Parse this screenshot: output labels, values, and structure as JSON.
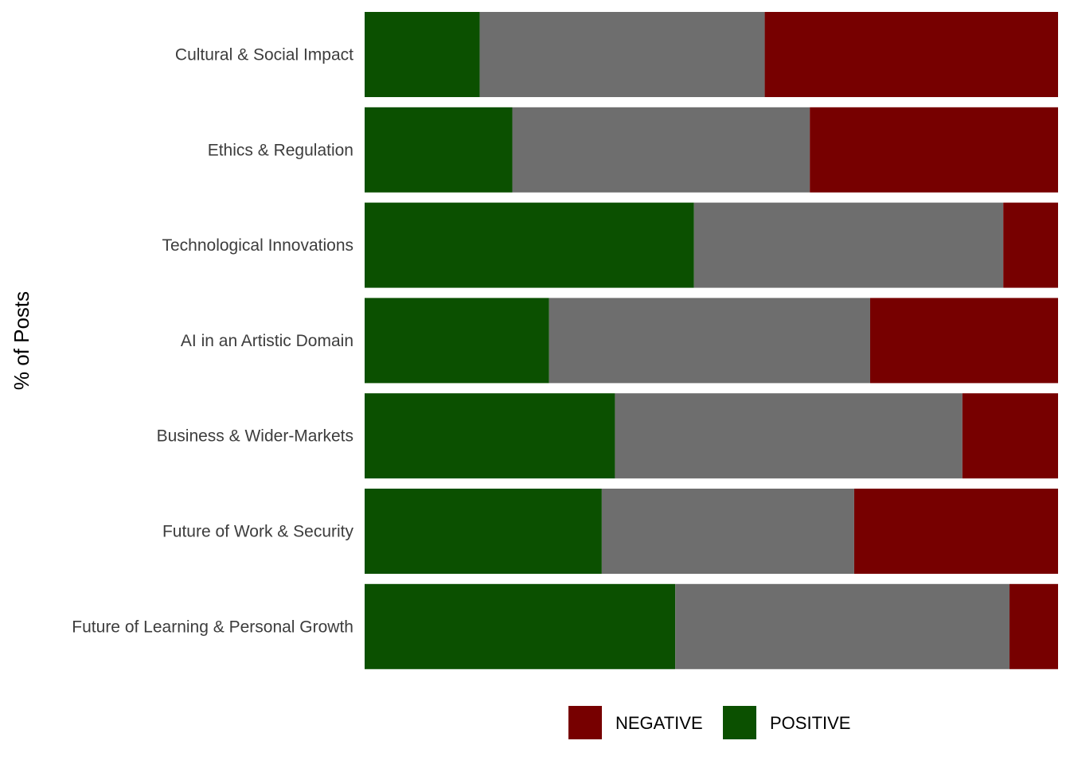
{
  "chart_data": {
    "type": "bar",
    "orientation": "horizontal",
    "stacked": true,
    "normalized": true,
    "ylabel": "% of Posts",
    "xlabel": "",
    "xlim": [
      0,
      100
    ],
    "grid": false,
    "legend_position": "bottom",
    "categories": [
      "Cultural & Social Impact",
      "Ethics & Regulation",
      "Technological Innovations",
      "AI in an Artistic Domain",
      "Business & Wider-Markets",
      "Future of Work & Security",
      "Future of Learning & Personal Growth"
    ],
    "series": [
      {
        "key": "positive",
        "name": "POSITIVE",
        "color": "#0b5000",
        "values": [
          16.6,
          21.3,
          47.5,
          26.6,
          36.1,
          34.2,
          44.8
        ]
      },
      {
        "key": "neutral",
        "color": "#6e6e6e",
        "values": [
          41.1,
          42.9,
          44.6,
          46.3,
          50.1,
          36.4,
          48.2
        ]
      },
      {
        "key": "negative",
        "name": "NEGATIVE",
        "color": "#770000",
        "values": [
          42.3,
          35.8,
          7.9,
          27.1,
          13.8,
          29.4,
          7.0
        ]
      }
    ],
    "legend": [
      {
        "name": "NEGATIVE",
        "color": "#770000"
      },
      {
        "name": "POSITIVE",
        "color": "#0b5000"
      }
    ]
  }
}
